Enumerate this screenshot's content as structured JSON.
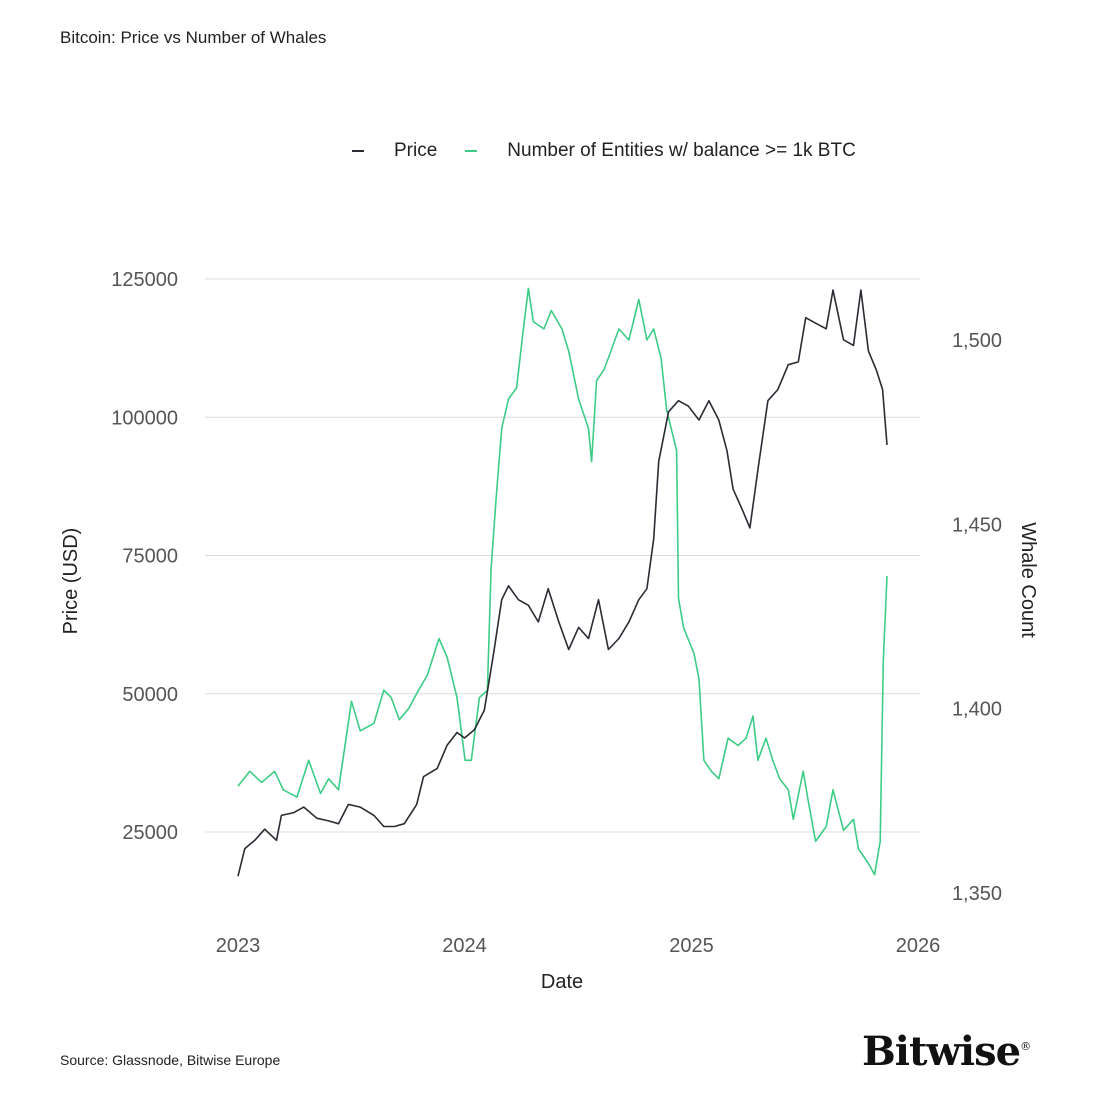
{
  "chart_data": {
    "type": "line",
    "title": "Bitcoin: Price vs Number of Whales",
    "xlabel": "Date",
    "ylabel": "Price (USD)",
    "y2label": "Whale Count",
    "xlim": [
      "2023-01-01",
      "2026-01-01"
    ],
    "ylim": [
      15000,
      125000
    ],
    "y2lim": [
      1345,
      1517
    ],
    "grid": true,
    "legend_position": "top",
    "x_ticks": [
      "2023",
      "2024",
      "2025",
      "2026"
    ],
    "y_ticks": [
      "125000",
      "100000",
      "75000",
      "50000",
      "25000"
    ],
    "y2_ticks": [
      "1,500",
      "1,450",
      "1,400",
      "1,350"
    ],
    "series": [
      {
        "name": "Price",
        "axis": "left",
        "color": "#2b2b33",
        "dates": [
          "2023-01-01",
          "2023-01-12",
          "2023-01-28",
          "2023-02-13",
          "2023-03-04",
          "2023-03-12",
          "2023-04-01",
          "2023-04-17",
          "2023-05-08",
          "2023-05-27",
          "2023-06-12",
          "2023-06-28",
          "2023-07-17",
          "2023-08-08",
          "2023-08-24",
          "2023-09-10",
          "2023-09-26",
          "2023-10-16",
          "2023-10-27",
          "2023-11-18",
          "2023-12-04",
          "2023-12-20",
          "2024-01-01",
          "2024-01-17",
          "2024-02-02",
          "2024-02-10",
          "2024-02-18",
          "2024-03-01",
          "2024-03-12",
          "2024-03-28",
          "2024-04-13",
          "2024-04-29",
          "2024-05-15",
          "2024-06-01",
          "2024-06-17",
          "2024-07-03",
          "2024-07-19",
          "2024-08-04",
          "2024-08-20",
          "2024-09-06",
          "2024-09-22",
          "2024-10-08",
          "2024-10-21",
          "2024-11-01",
          "2024-11-09",
          "2024-11-25",
          "2024-12-11",
          "2024-12-27",
          "2025-01-13",
          "2025-01-29",
          "2025-02-14",
          "2025-02-27",
          "2025-03-09",
          "2025-03-25",
          "2025-04-05",
          "2025-04-18",
          "2025-05-04",
          "2025-05-20",
          "2025-06-06",
          "2025-06-22",
          "2025-07-04",
          "2025-07-20",
          "2025-08-06",
          "2025-08-17",
          "2025-09-03",
          "2025-09-19",
          "2025-10-01",
          "2025-10-13",
          "2025-10-26",
          "2025-11-05",
          "2025-11-12"
        ],
        "values": [
          17000,
          22000,
          23500,
          25500,
          23500,
          28000,
          28500,
          29500,
          27500,
          27000,
          26500,
          30000,
          29500,
          28000,
          26000,
          26000,
          26500,
          30000,
          35000,
          36500,
          40700,
          43000,
          42000,
          43500,
          47000,
          52500,
          58000,
          67000,
          69500,
          67000,
          66000,
          63000,
          69000,
          63000,
          58000,
          62000,
          60000,
          67000,
          58000,
          60000,
          63000,
          67000,
          69000,
          78000,
          92000,
          101000,
          103000,
          102000,
          99500,
          103000,
          99500,
          94000,
          87000,
          83000,
          80000,
          90500,
          103000,
          105000,
          109500,
          110000,
          118000,
          117000,
          116000,
          123000,
          114000,
          113000,
          123000,
          112000,
          108500,
          105000,
          95000
        ]
      },
      {
        "name": "Number of Entities w/ balance >= 1k BTC",
        "axis": "right",
        "color": "#3dcc85",
        "dates": [
          "2023-01-01",
          "2023-01-20",
          "2023-02-08",
          "2023-03-01",
          "2023-03-15",
          "2023-04-06",
          "2023-04-25",
          "2023-05-14",
          "2023-05-27",
          "2023-06-12",
          "2023-07-03",
          "2023-07-17",
          "2023-08-08",
          "2023-08-24",
          "2023-09-05",
          "2023-09-18",
          "2023-10-03",
          "2023-10-19",
          "2023-11-02",
          "2023-11-21",
          "2023-12-04",
          "2023-12-20",
          "2024-01-02",
          "2024-01-12",
          "2024-01-25",
          "2024-02-07",
          "2024-02-13",
          "2024-02-21",
          "2024-03-01",
          "2024-03-12",
          "2024-03-25",
          "2024-04-05",
          "2024-04-13",
          "2024-04-21",
          "2024-05-08",
          "2024-05-20",
          "2024-06-06",
          "2024-06-17",
          "2024-07-03",
          "2024-07-19",
          "2024-07-24",
          "2024-08-01",
          "2024-08-13",
          "2024-08-24",
          "2024-09-06",
          "2024-09-22",
          "2024-10-08",
          "2024-10-21",
          "2024-11-01",
          "2024-11-13",
          "2024-11-22",
          "2024-12-08",
          "2024-12-11",
          "2024-12-19",
          "2025-01-05",
          "2025-01-13",
          "2025-01-21",
          "2025-02-02",
          "2025-02-14",
          "2025-03-01",
          "2025-03-17",
          "2025-03-30",
          "2025-04-10",
          "2025-04-18",
          "2025-05-01",
          "2025-05-12",
          "2025-05-23",
          "2025-06-06",
          "2025-06-14",
          "2025-06-30",
          "2025-07-08",
          "2025-07-20",
          "2025-08-06",
          "2025-08-17",
          "2025-09-03",
          "2025-09-19",
          "2025-09-27",
          "2025-10-13",
          "2025-10-23",
          "2025-11-01",
          "2025-11-06",
          "2025-11-12"
        ],
        "values": [
          1379,
          1383,
          1380,
          1383,
          1378,
          1376,
          1386,
          1377,
          1381,
          1378,
          1402,
          1394,
          1396,
          1405,
          1403,
          1397,
          1400,
          1405,
          1409,
          1419,
          1414,
          1403,
          1386,
          1386,
          1403,
          1405,
          1438,
          1457,
          1476,
          1484,
          1487,
          1503,
          1514,
          1505,
          1503,
          1508,
          1503,
          1497,
          1484,
          1476,
          1467,
          1489,
          1492,
          1497,
          1503,
          1500,
          1511,
          1500,
          1503,
          1495,
          1481,
          1470,
          1430,
          1422,
          1415,
          1408,
          1386,
          1383,
          1381,
          1392,
          1390,
          1392,
          1398,
          1386,
          1392,
          1386,
          1381,
          1378,
          1370,
          1383,
          1375,
          1364,
          1368,
          1378,
          1367,
          1370,
          1362,
          1358,
          1355,
          1364,
          1413,
          1436
        ]
      }
    ]
  },
  "footer": {
    "source": "Source: Glassnode, Bitwise Europe",
    "logo": "Bitwise"
  }
}
